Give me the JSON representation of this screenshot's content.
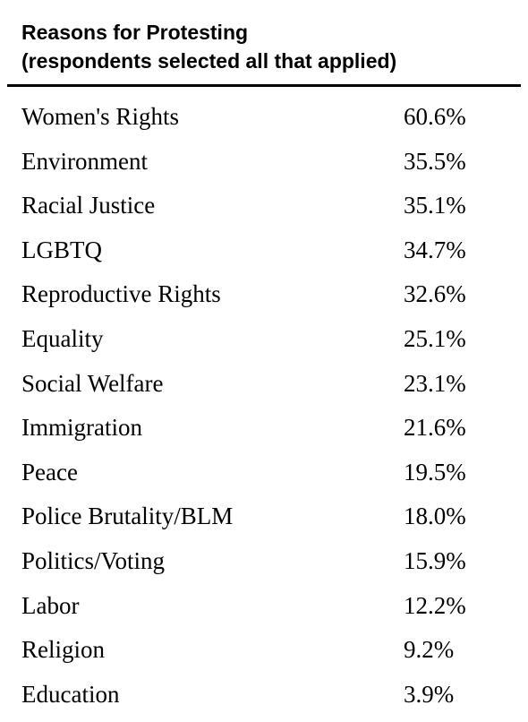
{
  "table": {
    "title_line1": "Reasons for Protesting",
    "title_line2": "(respondents selected all that applied)"
  },
  "chart_data": {
    "type": "table",
    "title": "Reasons for Protesting (respondents selected all that applied)",
    "rows": [
      {
        "label": "Women's Rights",
        "value": "60.6%"
      },
      {
        "label": "Environment",
        "value": "35.5%"
      },
      {
        "label": "Racial Justice",
        "value": "35.1%"
      },
      {
        "label": "LGBTQ",
        "value": "34.7%"
      },
      {
        "label": "Reproductive Rights",
        "value": "32.6%"
      },
      {
        "label": "Equality",
        "value": "25.1%"
      },
      {
        "label": "Social Welfare",
        "value": "23.1%"
      },
      {
        "label": "Immigration",
        "value": "21.6%"
      },
      {
        "label": "Peace",
        "value": "19.5%"
      },
      {
        "label": "Police Brutality/BLM",
        "value": "18.0%"
      },
      {
        "label": "Politics/Voting",
        "value": "15.9%"
      },
      {
        "label": "Labor",
        "value": "12.2%"
      },
      {
        "label": "Religion",
        "value": "9.2%"
      },
      {
        "label": "Education",
        "value": "3.9%"
      }
    ]
  }
}
